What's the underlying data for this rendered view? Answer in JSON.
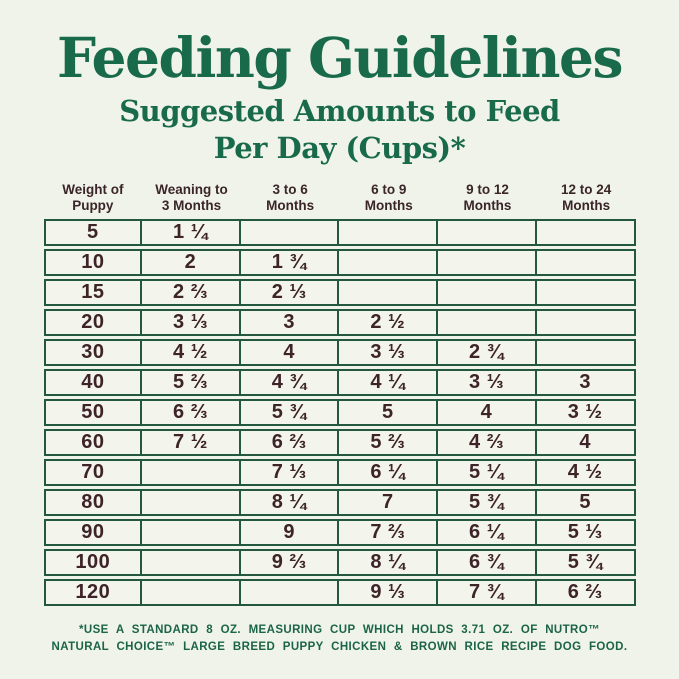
{
  "page": {
    "title": "Feeding Guidelines",
    "subtitle_line1": "Suggested Amounts to Feed",
    "subtitle_line2": "Per Day (Cups)*"
  },
  "colors": {
    "background": "#f0f3e9",
    "title_green": "#186a4b",
    "table_border_green": "#24573f",
    "table_text_brown": "#3e2428",
    "footnote_green": "#1b6448"
  },
  "table": {
    "headers": [
      {
        "line1": "Weight of",
        "line2": "Puppy"
      },
      {
        "line1": "Weaning to",
        "line2": "3 Months"
      },
      {
        "line1": "3 to 6",
        "line2": "Months"
      },
      {
        "line1": "6 to 9",
        "line2": "Months"
      },
      {
        "line1": "9 to 12",
        "line2": "Months"
      },
      {
        "line1": "12 to 24",
        "line2": "Months"
      }
    ],
    "rows": [
      {
        "weight": "5",
        "cells": [
          "1 ¼",
          "",
          "",
          "",
          ""
        ]
      },
      {
        "weight": "10",
        "cells": [
          "2",
          "1 ¾",
          "",
          "",
          ""
        ]
      },
      {
        "weight": "15",
        "cells": [
          "2 ⅔",
          "2 ⅓",
          "",
          "",
          ""
        ]
      },
      {
        "weight": "20",
        "cells": [
          "3 ⅓",
          "3",
          "2 ½",
          "",
          ""
        ]
      },
      {
        "weight": "30",
        "cells": [
          "4 ½",
          "4",
          "3 ⅓",
          "2 ¾",
          ""
        ]
      },
      {
        "weight": "40",
        "cells": [
          "5 ⅔",
          "4 ¾",
          "4 ¼",
          "3 ⅓",
          "3"
        ]
      },
      {
        "weight": "50",
        "cells": [
          "6 ⅔",
          "5 ¾",
          "5",
          "4",
          "3 ½"
        ]
      },
      {
        "weight": "60",
        "cells": [
          "7 ½",
          "6 ⅔",
          "5 ⅔",
          "4 ⅔",
          "4"
        ]
      },
      {
        "weight": "70",
        "cells": [
          "",
          "7 ⅓",
          "6 ¼",
          "5 ¼",
          "4 ½"
        ]
      },
      {
        "weight": "80",
        "cells": [
          "",
          "8 ¼",
          "7",
          "5 ¾",
          "5"
        ]
      },
      {
        "weight": "90",
        "cells": [
          "",
          "9",
          "7 ⅔",
          "6 ¼",
          "5 ⅓"
        ]
      },
      {
        "weight": "100",
        "cells": [
          "",
          "9 ⅔",
          "8 ¼",
          "6 ¾",
          "5 ¾"
        ]
      },
      {
        "weight": "120",
        "cells": [
          "",
          "",
          "9 ⅓",
          "7 ¾",
          "6 ⅔"
        ]
      }
    ]
  },
  "footnote": {
    "line1": "*USE A STANDARD 8 OZ. MEASURING CUP WHICH HOLDS 3.71 OZ. OF NUTRO™",
    "line2": "NATURAL CHOICE™ LARGE BREED PUPPY CHICKEN & BROWN RICE RECIPE DOG FOOD."
  },
  "chart_data": {
    "type": "table",
    "title": "Feeding Guidelines",
    "subtitle": "Suggested Amounts to Feed Per Day (Cups)*",
    "columns": [
      "Weight of Puppy",
      "Weaning to 3 Months",
      "3 to 6 Months",
      "6 to 9 Months",
      "9 to 12 Months",
      "12 to 24 Months"
    ],
    "rows": [
      [
        "5",
        "1 ¼",
        "",
        "",
        "",
        ""
      ],
      [
        "10",
        "2",
        "1 ¾",
        "",
        "",
        ""
      ],
      [
        "15",
        "2 ⅔",
        "2 ⅓",
        "",
        "",
        ""
      ],
      [
        "20",
        "3 ⅓",
        "3",
        "2 ½",
        "",
        ""
      ],
      [
        "30",
        "4 ½",
        "4",
        "3 ⅓",
        "2 ¾",
        ""
      ],
      [
        "40",
        "5 ⅔",
        "4 ¾",
        "4 ¼",
        "3 ⅓",
        "3"
      ],
      [
        "50",
        "6 ⅔",
        "5 ¾",
        "5",
        "4",
        "3 ½"
      ],
      [
        "60",
        "7 ½",
        "6 ⅔",
        "5 ⅔",
        "4 ⅔",
        "4"
      ],
      [
        "70",
        "",
        "7 ⅓",
        "6 ¼",
        "5 ¼",
        "4 ½"
      ],
      [
        "80",
        "",
        "8 ¼",
        "7",
        "5 ¾",
        "5"
      ],
      [
        "90",
        "",
        "9",
        "7 ⅔",
        "6 ¼",
        "5 ⅓"
      ],
      [
        "100",
        "",
        "9 ⅔",
        "8 ¼",
        "6 ¾",
        "5 ¾"
      ],
      [
        "120",
        "",
        "",
        "9 ⅓",
        "7 ¾",
        "6 ⅔"
      ]
    ],
    "units": "cups per day",
    "footnote": "*USE A STANDARD 8 OZ. MEASURING CUP WHICH HOLDS 3.71 OZ. OF NUTRO™ NATURAL CHOICE™ LARGE BREED PUPPY CHICKEN & BROWN RICE RECIPE DOG FOOD."
  }
}
